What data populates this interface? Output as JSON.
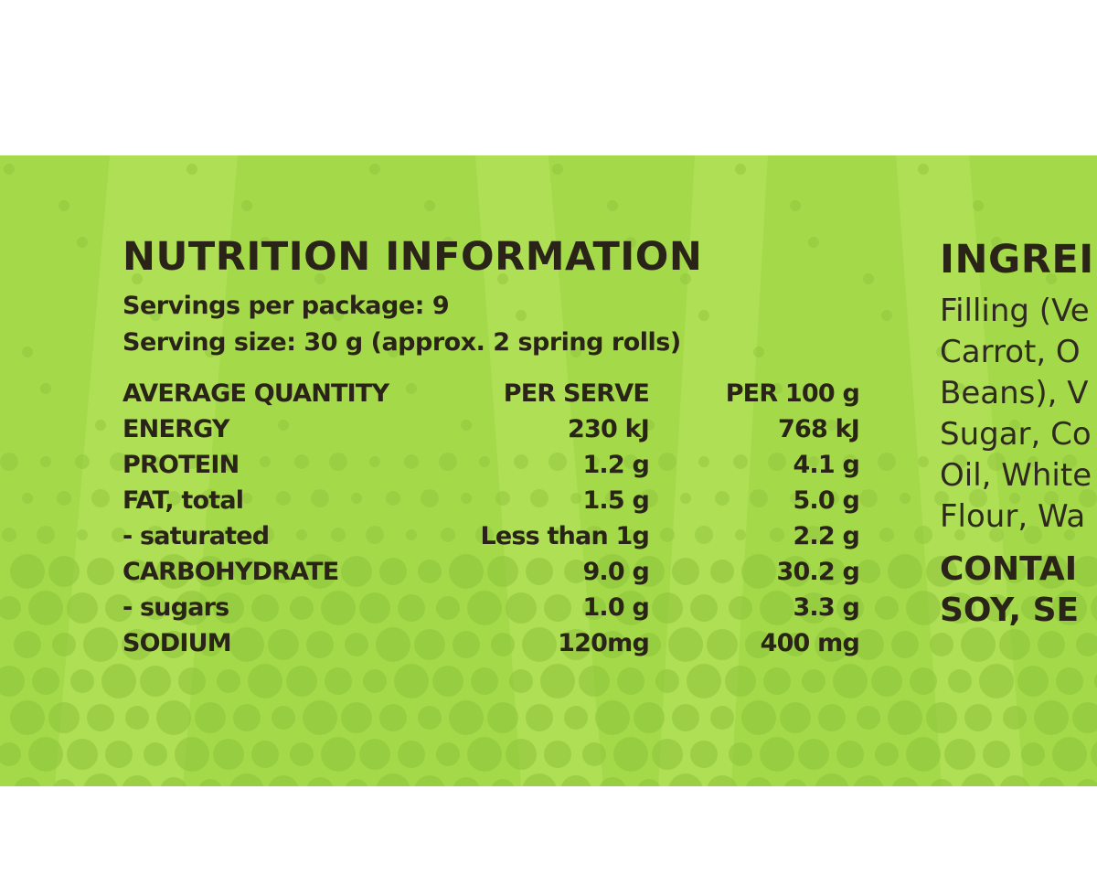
{
  "colors": {
    "panel_background": "#a4d94a",
    "text": "#2a2418",
    "dots_dark": "#8fc43c",
    "dots_light": "#b6e35f"
  },
  "nutrition": {
    "title": "NUTRITION INFORMATION",
    "servings_per_package": "Servings per package: 9",
    "serving_size": "Serving size: 30 g (approx. 2 spring rolls)",
    "headers": {
      "name": "AVERAGE QUANTITY",
      "per_serve": "PER SERVE",
      "per_100g": "PER 100 g"
    },
    "rows": [
      {
        "name": "ENERGY",
        "per_serve": "230 kJ",
        "per_100g": "768 kJ"
      },
      {
        "name": "PROTEIN",
        "per_serve": "1.2 g",
        "per_100g": "4.1 g"
      },
      {
        "name": "FAT, total",
        "per_serve": "1.5 g",
        "per_100g": "5.0 g"
      },
      {
        "name": "- saturated",
        "per_serve": "Less than 1g",
        "per_100g": "2.2 g"
      },
      {
        "name": "CARBOHYDRATE",
        "per_serve": "9.0 g",
        "per_100g": "30.2 g"
      },
      {
        "name": "- sugars",
        "per_serve": "1.0 g",
        "per_100g": "3.3 g"
      },
      {
        "name": "SODIUM",
        "per_serve": "120mg",
        "per_100g": "400 mg"
      }
    ]
  },
  "ingredients": {
    "title": "INGREI",
    "lines": [
      "Filling (Ve",
      "Carrot, O",
      "Beans), V",
      "Sugar, Co",
      "Oil, White",
      "Flour, Wa"
    ],
    "contains_lines": [
      "CONTAI",
      "SOY, SE"
    ]
  }
}
